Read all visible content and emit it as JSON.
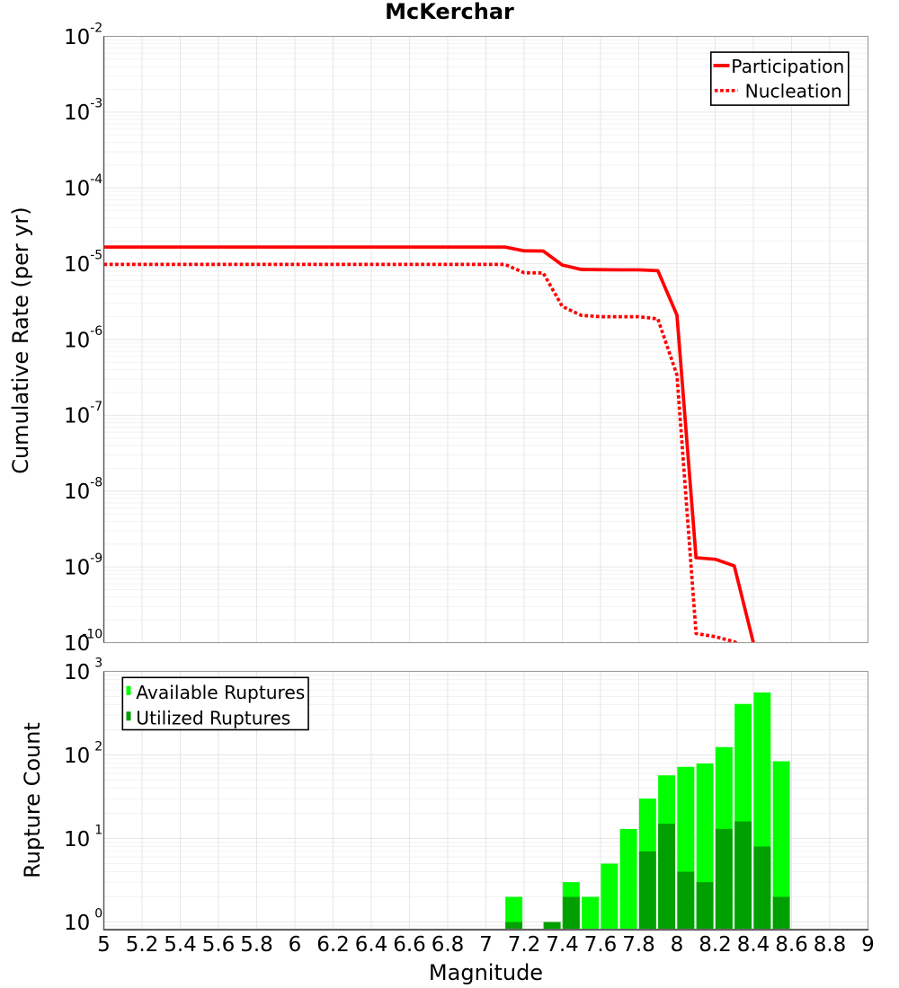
{
  "page_title": "McKerchar",
  "chart_data": [
    {
      "type": "line",
      "panel": "top",
      "title": "McKerchar",
      "xlabel": "",
      "ylabel": "Cumulative Rate (per yr)",
      "xscale": "linear",
      "yscale": "log",
      "xlim": [
        5,
        9
      ],
      "ylim": [
        1e-10,
        0.01
      ],
      "grid": true,
      "legend_position": "top-right",
      "y_tick_base": "10",
      "y_tick_exponents": [
        -2,
        -3,
        -4,
        -5,
        -6,
        -7,
        -8,
        -9,
        -10
      ],
      "series": [
        {
          "name": "Participation",
          "color": "#ff0000",
          "line_style": "solid",
          "line_width": 3.7,
          "points": [
            [
              5.0,
              1.66e-05
            ],
            [
              7.1,
              1.66e-05
            ],
            [
              7.2,
              1.48e-05
            ],
            [
              7.3,
              1.47e-05
            ],
            [
              7.4,
              9.6e-06
            ],
            [
              7.5,
              8.4e-06
            ],
            [
              7.6,
              8.35e-06
            ],
            [
              7.7,
              8.3e-06
            ],
            [
              7.8,
              8.3e-06
            ],
            [
              7.9,
              8.1e-06
            ],
            [
              8.0,
              2.1e-06
            ],
            [
              8.1,
              1.32e-09
            ],
            [
              8.2,
              1.26e-09
            ],
            [
              8.3,
              1.03e-09
            ],
            [
              8.4,
              1e-10
            ]
          ]
        },
        {
          "name": "Nucleation",
          "color": "#ff0000",
          "line_style": "dotted",
          "line_width": 3.7,
          "points": [
            [
              5.0,
              9.8e-06
            ],
            [
              7.1,
              9.8e-06
            ],
            [
              7.2,
              7.6e-06
            ],
            [
              7.3,
              7.55e-06
            ],
            [
              7.4,
              2.73e-06
            ],
            [
              7.5,
              2.08e-06
            ],
            [
              7.6,
              2e-06
            ],
            [
              7.7,
              2e-06
            ],
            [
              7.8,
              2e-06
            ],
            [
              7.9,
              1.87e-06
            ],
            [
              8.0,
              3.4e-07
            ],
            [
              8.1,
              1.32e-10
            ],
            [
              8.2,
              1.2e-10
            ],
            [
              8.3,
              1.03e-10
            ],
            [
              8.4,
              7e-11
            ]
          ]
        }
      ]
    },
    {
      "type": "bar",
      "panel": "bottom",
      "title": "",
      "xlabel": "Magnitude",
      "ylabel": "Rupture Count",
      "xscale": "linear",
      "yscale": "log",
      "xlim": [
        5,
        9
      ],
      "ylim": [
        1,
        1000
      ],
      "grid": true,
      "legend_position": "top-left",
      "y_tick_base": "10",
      "y_tick_exponents": [
        0,
        1,
        2,
        3
      ],
      "x_tick_labels": [
        "5",
        "5.2",
        "5.4",
        "5.6",
        "5.8",
        "6",
        "6.2",
        "6.4",
        "6.6",
        "6.8",
        "7",
        "7.2",
        "7.4",
        "7.6",
        "7.8",
        "8",
        "8.2",
        "8.4",
        "8.6",
        "8.8",
        "9"
      ],
      "bin_width": 0.1,
      "categories": [
        7.1,
        7.3,
        7.4,
        7.5,
        7.6,
        7.7,
        7.8,
        7.9,
        8.0,
        8.1,
        8.2,
        8.3,
        8.4,
        8.5
      ],
      "series": [
        {
          "name": "Available Ruptures",
          "color": "#00ff00",
          "values": [
            2,
            1,
            3,
            2,
            5,
            13,
            30,
            57,
            72,
            79,
            124,
            408,
            560,
            84
          ]
        },
        {
          "name": "Utilized Ruptures",
          "color": "#00a000",
          "values": [
            1,
            1,
            2,
            0,
            0,
            0,
            7,
            15,
            4,
            3,
            13,
            16,
            8,
            2
          ]
        }
      ]
    }
  ]
}
